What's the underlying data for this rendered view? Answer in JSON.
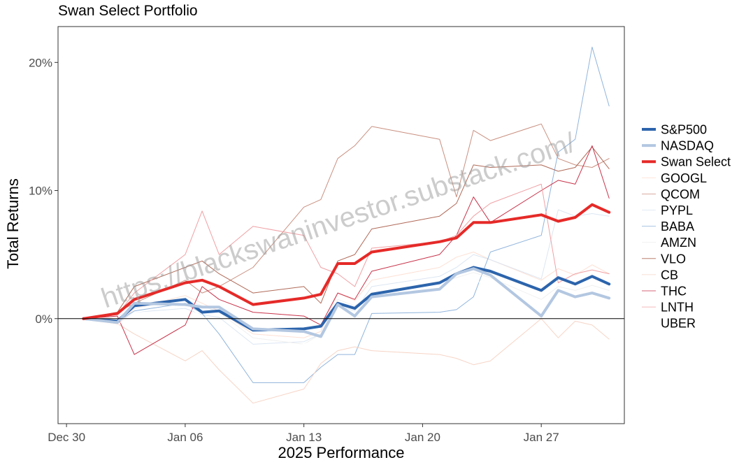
{
  "title": "Swan Select Portfolio",
  "watermark": "https://blackswaninvestor.substack.com/",
  "chart_data": {
    "type": "line",
    "title": "Swan Select Portfolio",
    "xlabel": "2025 Performance",
    "ylabel": "Total Returns",
    "x_ticks": [
      "Dec 30",
      "Jan 06",
      "Jan 13",
      "Jan 20",
      "Jan 27"
    ],
    "y_ticks": [
      {
        "value": 0,
        "label": "0%"
      },
      {
        "value": 10,
        "label": "10%"
      },
      {
        "value": 20,
        "label": "20%"
      }
    ],
    "xlim": [
      "2024-12-29.5",
      "2025-01-31.9"
    ],
    "ylim": [
      -8.2,
      22.8
    ],
    "grid": false,
    "legend_position": "right",
    "x": [
      "2024-12-31",
      "2025-01-02",
      "2025-01-03",
      "2025-01-06",
      "2025-01-07",
      "2025-01-08",
      "2025-01-10",
      "2025-01-13",
      "2025-01-14",
      "2025-01-15",
      "2025-01-16",
      "2025-01-17",
      "2025-01-21",
      "2025-01-22",
      "2025-01-23",
      "2025-01-24",
      "2025-01-27",
      "2025-01-28",
      "2025-01-29",
      "2025-01-30",
      "2025-01-31"
    ],
    "series": [
      {
        "name": "S&P500",
        "color": "#2c64ac",
        "width": 4,
        "values": [
          0.0,
          -0.2,
          1.0,
          1.5,
          0.5,
          0.6,
          -0.9,
          -0.8,
          -0.6,
          1.2,
          0.8,
          1.9,
          2.8,
          3.5,
          4.0,
          3.7,
          2.2,
          3.2,
          2.7,
          3.3,
          2.7
        ]
      },
      {
        "name": "NASDAQ",
        "color": "#b3c7e1",
        "width": 4,
        "values": [
          0.0,
          -0.3,
          1.2,
          1.1,
          0.9,
          0.9,
          -0.8,
          -1.0,
          -1.4,
          1.1,
          0.2,
          1.7,
          2.3,
          3.5,
          3.9,
          3.4,
          0.2,
          2.2,
          1.7,
          2.0,
          1.6
        ]
      },
      {
        "name": "Swan Select",
        "color": "#e52a28",
        "width": 4,
        "values": [
          0.0,
          0.4,
          1.5,
          2.8,
          3.0,
          2.5,
          1.1,
          1.6,
          1.9,
          4.3,
          4.3,
          5.2,
          6.0,
          6.3,
          7.5,
          7.5,
          8.1,
          7.6,
          7.9,
          8.9,
          8.3
        ]
      },
      {
        "name": "GOOGL",
        "color": "#fde0d4",
        "width": 1,
        "values": [
          0.0,
          -0.5,
          0.8,
          1.8,
          1.2,
          0.6,
          -1.2,
          -1.5,
          -1.0,
          2.0,
          1.4,
          3.0,
          4.0,
          4.8,
          5.2,
          4.6,
          3.0,
          3.9,
          3.4,
          4.2,
          3.5
        ]
      },
      {
        "name": "QCOM",
        "color": "#c99080",
        "width": 1,
        "values": [
          0.0,
          0.5,
          1.2,
          3.0,
          2.0,
          2.5,
          4.0,
          8.7,
          9.3,
          12.5,
          13.5,
          15.0,
          14.0,
          9.5,
          14.7,
          13.9,
          15.2,
          12.5,
          12.0,
          11.8,
          12.5
        ]
      },
      {
        "name": "PYPL",
        "color": "#dbe6f2",
        "width": 1,
        "values": [
          0.0,
          -0.3,
          0.5,
          0.8,
          0.3,
          0.1,
          -2.0,
          -1.8,
          -1.2,
          1.0,
          0.6,
          2.5,
          3.3,
          4.0,
          5.0,
          4.6,
          3.1,
          8.5,
          8.0,
          8.2,
          8.0
        ]
      },
      {
        "name": "BABA",
        "color": "#90b4dc",
        "width": 1,
        "values": [
          0.0,
          -0.2,
          0.6,
          1.2,
          0.4,
          -1.2,
          -5.0,
          -5.0,
          -3.8,
          -2.8,
          -2.8,
          0.4,
          0.5,
          0.7,
          1.7,
          5.2,
          6.5,
          13.0,
          14.0,
          21.2,
          16.6
        ]
      },
      {
        "name": "AMZN",
        "color": "#f0f0f0",
        "width": 1,
        "values": [
          0.0,
          0.2,
          0.8,
          1.5,
          1.0,
          0.5,
          -1.5,
          -2.0,
          -1.2,
          1.5,
          1.0,
          2.0,
          2.8,
          3.2,
          3.6,
          3.2,
          1.5,
          2.5,
          2.2,
          2.6,
          2.2
        ]
      },
      {
        "name": "VLO",
        "color": "#b06a58",
        "width": 1,
        "values": [
          0.0,
          0.5,
          2.5,
          4.0,
          4.5,
          3.5,
          2.0,
          2.5,
          1.2,
          4.5,
          5.0,
          7.0,
          8.0,
          9.0,
          12.0,
          11.8,
          12.0,
          11.5,
          11.8,
          13.4,
          11.7
        ]
      },
      {
        "name": "CB",
        "color": "#f6d4c6",
        "width": 1,
        "values": [
          0.0,
          -0.4,
          -1.2,
          -3.3,
          -2.5,
          -4.0,
          -6.6,
          -5.5,
          -3.5,
          -2.5,
          -2.2,
          -2.5,
          -2.8,
          -3.1,
          -3.6,
          -3.3,
          0.0,
          -1.5,
          -0.2,
          -0.5,
          -1.6
        ]
      },
      {
        "name": "THC",
        "color": "#c8334a",
        "width": 1,
        "values": [
          0.0,
          0.2,
          -2.8,
          -0.5,
          2.5,
          1.5,
          0.5,
          0.2,
          -0.5,
          2.0,
          1.5,
          3.7,
          5.0,
          6.5,
          9.5,
          7.5,
          10.0,
          10.8,
          10.5,
          13.5,
          9.4
        ]
      },
      {
        "name": "LNTH",
        "color": "#f0a0a4",
        "width": 1,
        "values": [
          0.0,
          0.3,
          2.0,
          5.0,
          8.4,
          5.0,
          7.2,
          6.5,
          4.0,
          3.5,
          2.5,
          5.5,
          6.0,
          6.5,
          8.0,
          9.0,
          10.5,
          2.8,
          3.5,
          3.8,
          3.5
        ]
      },
      {
        "name": "UBER",
        "color": "#ffffff",
        "width": 1,
        "values": [
          0.0,
          -0.5,
          0.5,
          1.0,
          0.2,
          -0.5,
          -2.5,
          -2.0,
          -1.5,
          0.5,
          0.2,
          1.5,
          2.0,
          2.5,
          3.0,
          2.6,
          1.0,
          1.8,
          1.4,
          1.9,
          1.5
        ]
      }
    ]
  }
}
